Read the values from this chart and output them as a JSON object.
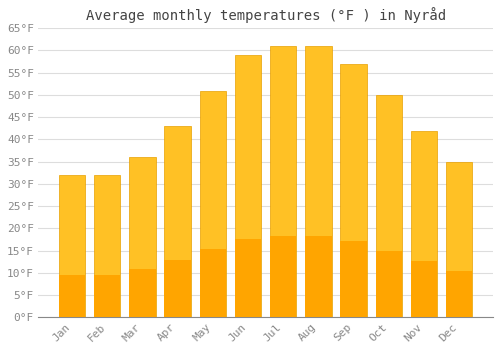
{
  "title": "Average monthly temperatures (°F ) in Nyråd",
  "months": [
    "Jan",
    "Feb",
    "Mar",
    "Apr",
    "May",
    "Jun",
    "Jul",
    "Aug",
    "Sep",
    "Oct",
    "Nov",
    "Dec"
  ],
  "values": [
    32,
    32,
    36,
    43,
    51,
    59,
    61,
    61,
    57,
    50,
    42,
    35
  ],
  "bar_color_top": "#FFC125",
  "bar_color_bottom": "#FFA500",
  "bar_edge_color": "#E8A000",
  "background_color": "#FFFFFF",
  "plot_bg_color": "#FFFFFF",
  "ylim": [
    0,
    65
  ],
  "yticks": [
    0,
    5,
    10,
    15,
    20,
    25,
    30,
    35,
    40,
    45,
    50,
    55,
    60,
    65
  ],
  "ytick_labels": [
    "0°F",
    "5°F",
    "10°F",
    "15°F",
    "20°F",
    "25°F",
    "30°F",
    "35°F",
    "40°F",
    "45°F",
    "50°F",
    "55°F",
    "60°F",
    "65°F"
  ],
  "title_fontsize": 10,
  "tick_fontsize": 8,
  "grid_color": "#DDDDDD",
  "tick_color": "#888888",
  "bar_width": 0.75
}
